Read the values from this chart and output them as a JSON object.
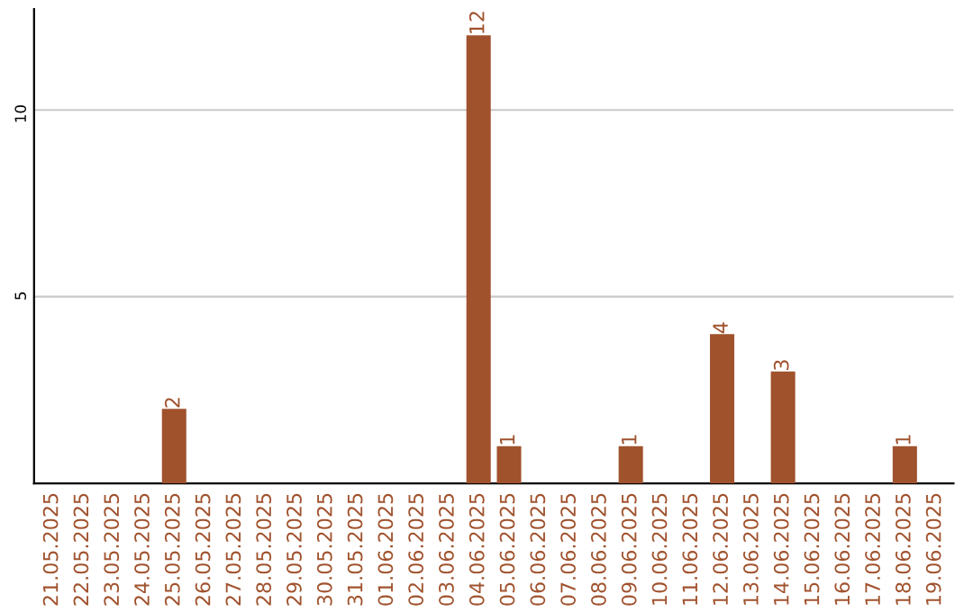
{
  "chart_data": {
    "type": "bar",
    "categories": [
      "21.05.2025",
      "22.05.2025",
      "23.05.2025",
      "24.05.2025",
      "25.05.2025",
      "26.05.2025",
      "27.05.2025",
      "28.05.2025",
      "29.05.2025",
      "30.05.2025",
      "31.05.2025",
      "01.06.2025",
      "02.06.2025",
      "03.06.2025",
      "04.06.2025",
      "05.06.2025",
      "06.06.2025",
      "07.06.2025",
      "08.06.2025",
      "09.06.2025",
      "10.06.2025",
      "11.06.2025",
      "12.06.2025",
      "13.06.2025",
      "14.06.2025",
      "15.06.2025",
      "16.06.2025",
      "17.06.2025",
      "18.06.2025",
      "19.06.2025"
    ],
    "values": [
      0,
      0,
      0,
      0,
      2,
      0,
      0,
      0,
      0,
      0,
      0,
      0,
      0,
      0,
      12,
      1,
      0,
      0,
      0,
      1,
      0,
      0,
      4,
      0,
      3,
      0,
      0,
      0,
      1,
      0
    ],
    "value_labels": [
      null,
      null,
      null,
      null,
      "2",
      null,
      null,
      null,
      null,
      null,
      null,
      null,
      null,
      null,
      "12",
      "1",
      null,
      null,
      null,
      "1",
      null,
      null,
      "4",
      null,
      "3",
      null,
      null,
      null,
      "1",
      null
    ],
    "color": "#a0522d",
    "ylim": [
      0,
      12.7
    ],
    "yticks": [
      5,
      10
    ],
    "grid": "y"
  }
}
